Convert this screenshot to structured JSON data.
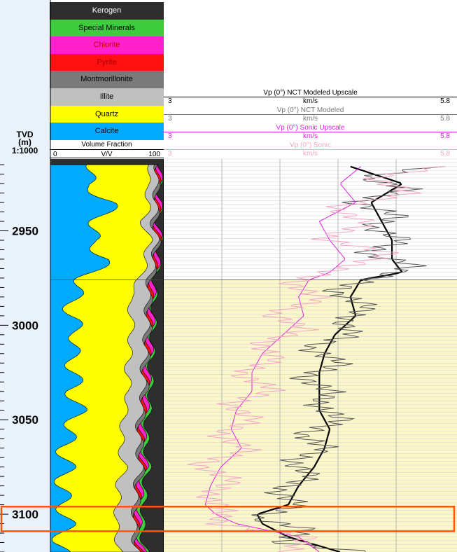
{
  "depth_track": {
    "title_line1": "TVD",
    "title_line2": "(m)",
    "scale": "1:1000",
    "depth_labels": [
      "2950",
      "3000",
      "3050",
      "3100"
    ],
    "depth_values": [
      2950,
      3000,
      3050,
      3100
    ]
  },
  "lithology_legend": [
    {
      "label": "Kerogen",
      "color": "#2e2e2e",
      "text_color": "#ffffff"
    },
    {
      "label": "Special Minerals",
      "color": "#3dcc3d",
      "text_color": "#000000"
    },
    {
      "label": "Chlorite",
      "color": "#ff22cc",
      "text_color": "#cc0000"
    },
    {
      "label": "Pyrite",
      "color": "#ff1111",
      "text_color": "#aa0000"
    },
    {
      "label": "Montmorillonite",
      "color": "#7a7a7a",
      "text_color": "#000000"
    },
    {
      "label": "Illite",
      "color": "#c0c0c0",
      "text_color": "#000000"
    },
    {
      "label": "Quartz",
      "color": "#ffff00",
      "text_color": "#000000"
    },
    {
      "label": "Calcite",
      "color": "#00aaff",
      "text_color": "#000000"
    }
  ],
  "volume_fraction": {
    "title": "Volume Fraction",
    "unit": "V/V",
    "min": "0",
    "max": "100"
  },
  "curve_headers": [
    {
      "name": "Vp (0°) NCT Modeled Upscale",
      "unit": "km/s",
      "min": "3",
      "max": "5.8",
      "color": "#000000"
    },
    {
      "name": "Vp (0°) NCT Modeled",
      "unit": "km/s",
      "min": "3",
      "max": "5.8",
      "color": "#777777"
    },
    {
      "name": "Vp (0°) Sonic Upscale",
      "unit": "km/s",
      "min": "3",
      "max": "5.8",
      "color": "#e020e0"
    },
    {
      "name": "Vp (0°) Sonic",
      "unit": "km/s",
      "min": "3",
      "max": "5.8",
      "color": "#f4a6c6"
    }
  ],
  "chart_data": {
    "type": "line",
    "ylabel": "TVD (m)",
    "ylim": [
      2912,
      3120
    ],
    "xlim": [
      3,
      5.8
    ],
    "yellow_zone_top_depth": 2976,
    "highlight_depth_range": [
      3096,
      3109
    ],
    "highlight_color": "#ff5500",
    "series": [
      {
        "name": "Vp (0°) NCT Modeled Upscale",
        "color": "#000000",
        "depth": [
          2916,
          2925,
          2935,
          2945,
          2955,
          2965,
          2972,
          2976,
          2985,
          2995,
          3005,
          3015,
          3025,
          3035,
          3045,
          3055,
          3065,
          3075,
          3085,
          3095,
          3100,
          3105,
          3112,
          3120
        ],
        "values": [
          4.8,
          5.3,
          5.0,
          5.1,
          5.2,
          5.2,
          5.3,
          4.9,
          4.8,
          4.85,
          4.65,
          4.55,
          4.5,
          4.5,
          4.5,
          4.6,
          4.55,
          4.45,
          4.3,
          4.2,
          3.9,
          3.95,
          4.2,
          4.7
        ]
      },
      {
        "name": "Vp (0°) NCT Modeled",
        "color": "#555555",
        "depth": [
          2916,
          2922,
          2928,
          2935,
          2942,
          2948,
          2955,
          2962,
          2968,
          2975,
          2982,
          2990,
          2998,
          3005,
          3012,
          3020,
          3028,
          3035,
          3042,
          3050,
          3058,
          3065,
          3072,
          3080,
          3088,
          3095,
          3102,
          3108,
          3115,
          3120
        ],
        "values": [
          5.6,
          4.9,
          5.4,
          4.8,
          5.3,
          4.95,
          5.35,
          4.9,
          5.45,
          5.05,
          4.6,
          5.0,
          4.7,
          4.85,
          4.35,
          4.75,
          4.3,
          4.65,
          4.45,
          4.75,
          4.3,
          4.6,
          4.2,
          4.45,
          4.05,
          4.35,
          3.85,
          4.4,
          4.1,
          4.95
        ]
      },
      {
        "name": "Vp (0°) Sonic Upscale",
        "color": "#e020e0",
        "depth": [
          2916,
          2925,
          2935,
          2945,
          2955,
          2965,
          2972,
          2976,
          2985,
          2995,
          3005,
          3015,
          3025,
          3035,
          3045,
          3055,
          3065,
          3075,
          3085,
          3095,
          3100,
          3105,
          3112,
          3120
        ],
        "values": [
          4.9,
          4.7,
          4.85,
          4.5,
          4.6,
          4.75,
          4.6,
          4.4,
          4.3,
          4.35,
          4.15,
          3.95,
          3.85,
          3.85,
          3.7,
          3.65,
          3.75,
          3.55,
          3.45,
          3.4,
          3.5,
          3.7,
          4.3,
          4.5
        ]
      },
      {
        "name": "Vp (0°) Sonic",
        "color": "#f4a6c6",
        "depth": [
          2916,
          2922,
          2930,
          2938,
          2946,
          2954,
          2962,
          2970,
          2978,
          2986,
          2994,
          3002,
          3010,
          3018,
          3026,
          3034,
          3042,
          3050,
          3058,
          3066,
          3074,
          3082,
          3090,
          3098,
          3105,
          3112,
          3120
        ],
        "values": [
          5.7,
          5.0,
          5.4,
          4.6,
          5.0,
          4.5,
          5.2,
          4.7,
          4.2,
          4.55,
          4.0,
          4.4,
          3.9,
          4.1,
          3.7,
          4.1,
          3.6,
          3.9,
          3.5,
          3.85,
          3.3,
          3.7,
          3.4,
          3.6,
          3.5,
          4.4,
          4.2
        ]
      }
    ],
    "volume_fraction_boundaries": {
      "depth": [
        2915,
        2925,
        2935,
        2945,
        2955,
        2965,
        2975,
        2985,
        2995,
        3005,
        3015,
        3025,
        3035,
        3045,
        3055,
        3065,
        3075,
        3085,
        3095,
        3105,
        3115,
        3120
      ],
      "calcite_top": [
        40,
        30,
        55,
        42,
        35,
        50,
        30,
        20,
        18,
        25,
        18,
        22,
        20,
        25,
        18,
        12,
        15,
        10,
        12,
        15,
        8,
        10
      ],
      "quartz_top": [
        90,
        85,
        88,
        82,
        88,
        85,
        80,
        70,
        72,
        72,
        70,
        68,
        70,
        66,
        64,
        62,
        66,
        60,
        60,
        58,
        60,
        62
      ],
      "illite_top": [
        95,
        93,
        94,
        91,
        94,
        92,
        88,
        86,
        86,
        85,
        84,
        82,
        83,
        80,
        78,
        78,
        80,
        76,
        75,
        74,
        75,
        78
      ],
      "mont_top": [
        96,
        94.5,
        95.5,
        93,
        95.5,
        93.5,
        90,
        88,
        88,
        87,
        86,
        84,
        85,
        82,
        80,
        80,
        82,
        78,
        77,
        76,
        77,
        80
      ],
      "pyrite_top": [
        96.5,
        95,
        96,
        93.5,
        96,
        94,
        90.5,
        88.7,
        88.6,
        87.6,
        86.6,
        84.6,
        85.6,
        82.6,
        80.6,
        80.6,
        82.6,
        78.6,
        77.6,
        76.6,
        77.6,
        80.6
      ],
      "chlorite_top": [
        97.5,
        96.5,
        97,
        95,
        97,
        95.5,
        92.5,
        90.5,
        90.5,
        89.5,
        88.5,
        86.5,
        87.5,
        84.5,
        82.5,
        82.5,
        84.5,
        80.5,
        79.5,
        78.5,
        79.5,
        82.5
      ],
      "special_top": [
        98,
        97,
        97.5,
        95.5,
        97.5,
        96,
        93.5,
        92,
        92,
        91,
        90,
        88.5,
        89.5,
        87,
        85,
        85,
        87,
        83.5,
        83,
        81.5,
        82.5,
        85
      ]
    }
  }
}
